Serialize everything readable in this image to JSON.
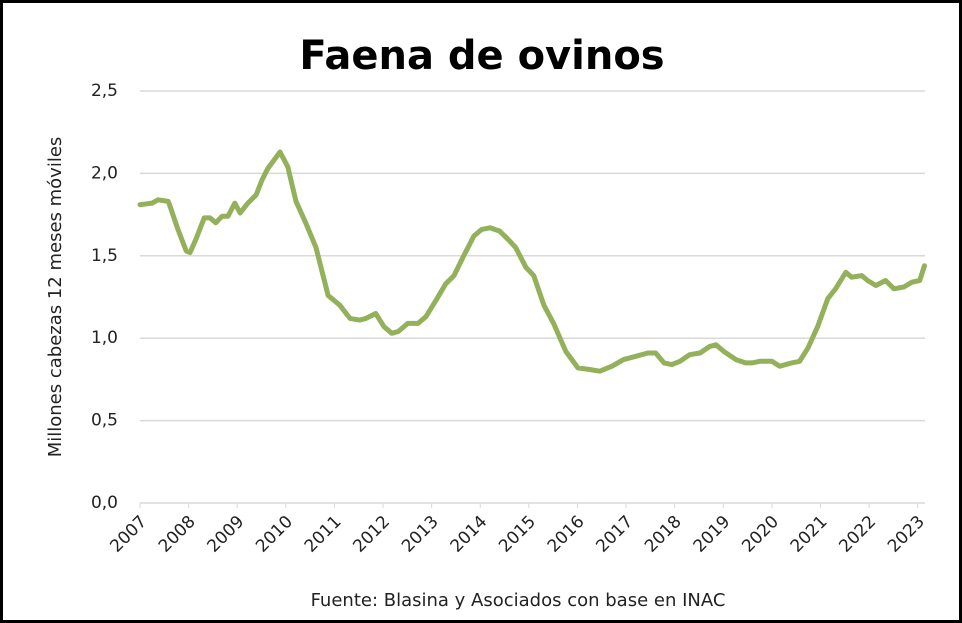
{
  "chart_data": {
    "type": "line",
    "title": "Faena de ovinos",
    "y_label": "Millones cabezas 12 meses móviles",
    "source": "Fuente: Blasina y Asociados con base en INAC",
    "x": [
      2007.0,
      2007.25,
      2007.37,
      2007.58,
      2007.62,
      2007.78,
      2007.95,
      2008.03,
      2008.15,
      2008.32,
      2008.44,
      2008.56,
      2008.69,
      2008.81,
      2008.95,
      2009.06,
      2009.22,
      2009.39,
      2009.51,
      2009.63,
      2009.88,
      2010.04,
      2010.21,
      2010.41,
      2010.62,
      2010.87,
      2011.11,
      2011.32,
      2011.52,
      2011.65,
      2011.85,
      2012.02,
      2012.18,
      2012.31,
      2012.51,
      2012.72,
      2012.88,
      2013.09,
      2013.29,
      2013.46,
      2013.66,
      2013.87,
      2014.03,
      2014.2,
      2014.4,
      2014.57,
      2014.73,
      2014.94,
      2015.1,
      2015.31,
      2015.51,
      2015.76,
      2016.01,
      2016.25,
      2016.46,
      2016.71,
      2016.95,
      2017.2,
      2017.45,
      2017.61,
      2017.78,
      2017.94,
      2018.11,
      2018.31,
      2018.52,
      2018.72,
      2018.85,
      2019.01,
      2019.26,
      2019.46,
      2019.59,
      2019.75,
      2020.0,
      2020.16,
      2020.41,
      2020.57,
      2020.74,
      2020.94,
      2021.15,
      2021.31,
      2021.52,
      2021.64,
      2021.85,
      2021.97,
      2022.14,
      2022.34,
      2022.51,
      2022.71,
      2022.88,
      2023.04,
      2023.14
    ],
    "series": [
      {
        "name": "Faena de ovinos",
        "color": "#92b15a",
        "values": [
          1.81,
          1.82,
          1.84,
          1.83,
          1.8,
          1.66,
          1.53,
          1.52,
          1.6,
          1.73,
          1.73,
          1.7,
          1.74,
          1.74,
          1.82,
          1.76,
          1.82,
          1.87,
          1.96,
          2.03,
          2.13,
          2.04,
          1.83,
          1.7,
          1.55,
          1.26,
          1.2,
          1.12,
          1.11,
          1.12,
          1.15,
          1.07,
          1.03,
          1.04,
          1.09,
          1.09,
          1.13,
          1.23,
          1.33,
          1.38,
          1.5,
          1.62,
          1.66,
          1.67,
          1.65,
          1.6,
          1.55,
          1.43,
          1.38,
          1.2,
          1.09,
          0.92,
          0.82,
          0.81,
          0.8,
          0.83,
          0.87,
          0.89,
          0.91,
          0.91,
          0.85,
          0.84,
          0.86,
          0.9,
          0.91,
          0.95,
          0.96,
          0.92,
          0.87,
          0.85,
          0.85,
          0.86,
          0.86,
          0.83,
          0.85,
          0.86,
          0.94,
          1.07,
          1.24,
          1.3,
          1.4,
          1.37,
          1.38,
          1.35,
          1.32,
          1.35,
          1.3,
          1.31,
          1.34,
          1.35,
          1.44
        ]
      }
    ],
    "xlim": [
      2007,
      2023.15
    ],
    "xticks": [
      2007,
      2008,
      2009,
      2010,
      2011,
      2012,
      2013,
      2014,
      2015,
      2016,
      2017,
      2018,
      2019,
      2020,
      2021,
      2022,
      2023
    ],
    "ylim": [
      0,
      2.5
    ],
    "yticks": [
      {
        "value": 0,
        "label": "0,0"
      },
      {
        "value": 0.5,
        "label": "0,5"
      },
      {
        "value": 1,
        "label": "1,0"
      },
      {
        "value": 1.5,
        "label": "1,5"
      },
      {
        "value": 2,
        "label": "2,0"
      },
      {
        "value": 2.5,
        "label": "2,5"
      }
    ],
    "grid": true
  }
}
